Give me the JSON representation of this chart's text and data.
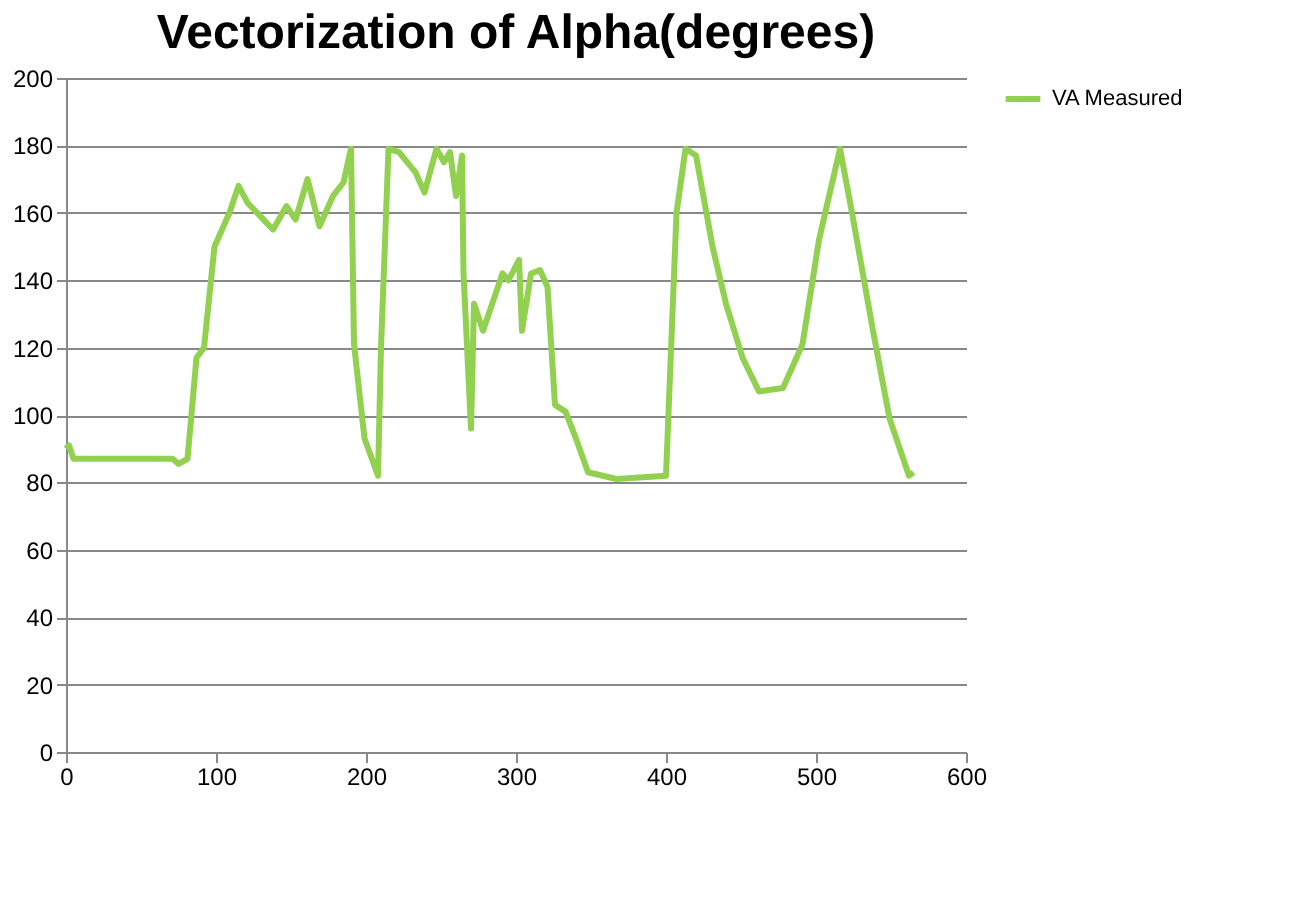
{
  "chart_data": {
    "type": "line",
    "title": "Vectorization of Alpha(degrees)",
    "xlim": [
      0,
      600
    ],
    "xticks": [
      0,
      100,
      200,
      300,
      400,
      500,
      600
    ],
    "ylim": [
      0,
      200
    ],
    "yticks": [
      0,
      20,
      40,
      60,
      80,
      100,
      120,
      140,
      160,
      180,
      200
    ],
    "grid": "y",
    "legend": "right",
    "marker": "none",
    "line_style": "solid",
    "series": [
      {
        "name": "VA Measured",
        "color": "#92d050",
        "x": [
          0,
          2,
          5,
          40,
          71,
          75,
          81,
          87,
          92,
          99,
          109,
          115,
          121,
          138,
          147,
          153,
          161,
          169,
          178,
          185,
          190,
          192,
          199,
          208,
          210,
          215,
          222,
          233,
          239,
          247,
          252,
          256,
          260,
          264,
          265,
          270,
          272,
          278,
          291,
          295,
          302,
          304,
          310,
          316,
          321,
          326,
          333,
          340,
          348,
          367,
          400,
          407,
          413,
          420,
          431,
          440,
          451,
          462,
          478,
          489,
          491,
          502,
          516,
          524,
          538,
          549,
          562,
          565
        ],
        "values": [
          90,
          91,
          87,
          87,
          87,
          85.5,
          87,
          117,
          120,
          150,
          160,
          168,
          163,
          155,
          162,
          158,
          170,
          156,
          165,
          169,
          179,
          121,
          93,
          82,
          120,
          179,
          178,
          172,
          166,
          179,
          175,
          178,
          165,
          177,
          142,
          96,
          133,
          125,
          142,
          140,
          146,
          125,
          142,
          143,
          138,
          103,
          101,
          93,
          83,
          81,
          82,
          160,
          179,
          177,
          150,
          133,
          117,
          107,
          108,
          119,
          121,
          152,
          179,
          160,
          125,
          99,
          82,
          83
        ]
      }
    ]
  }
}
